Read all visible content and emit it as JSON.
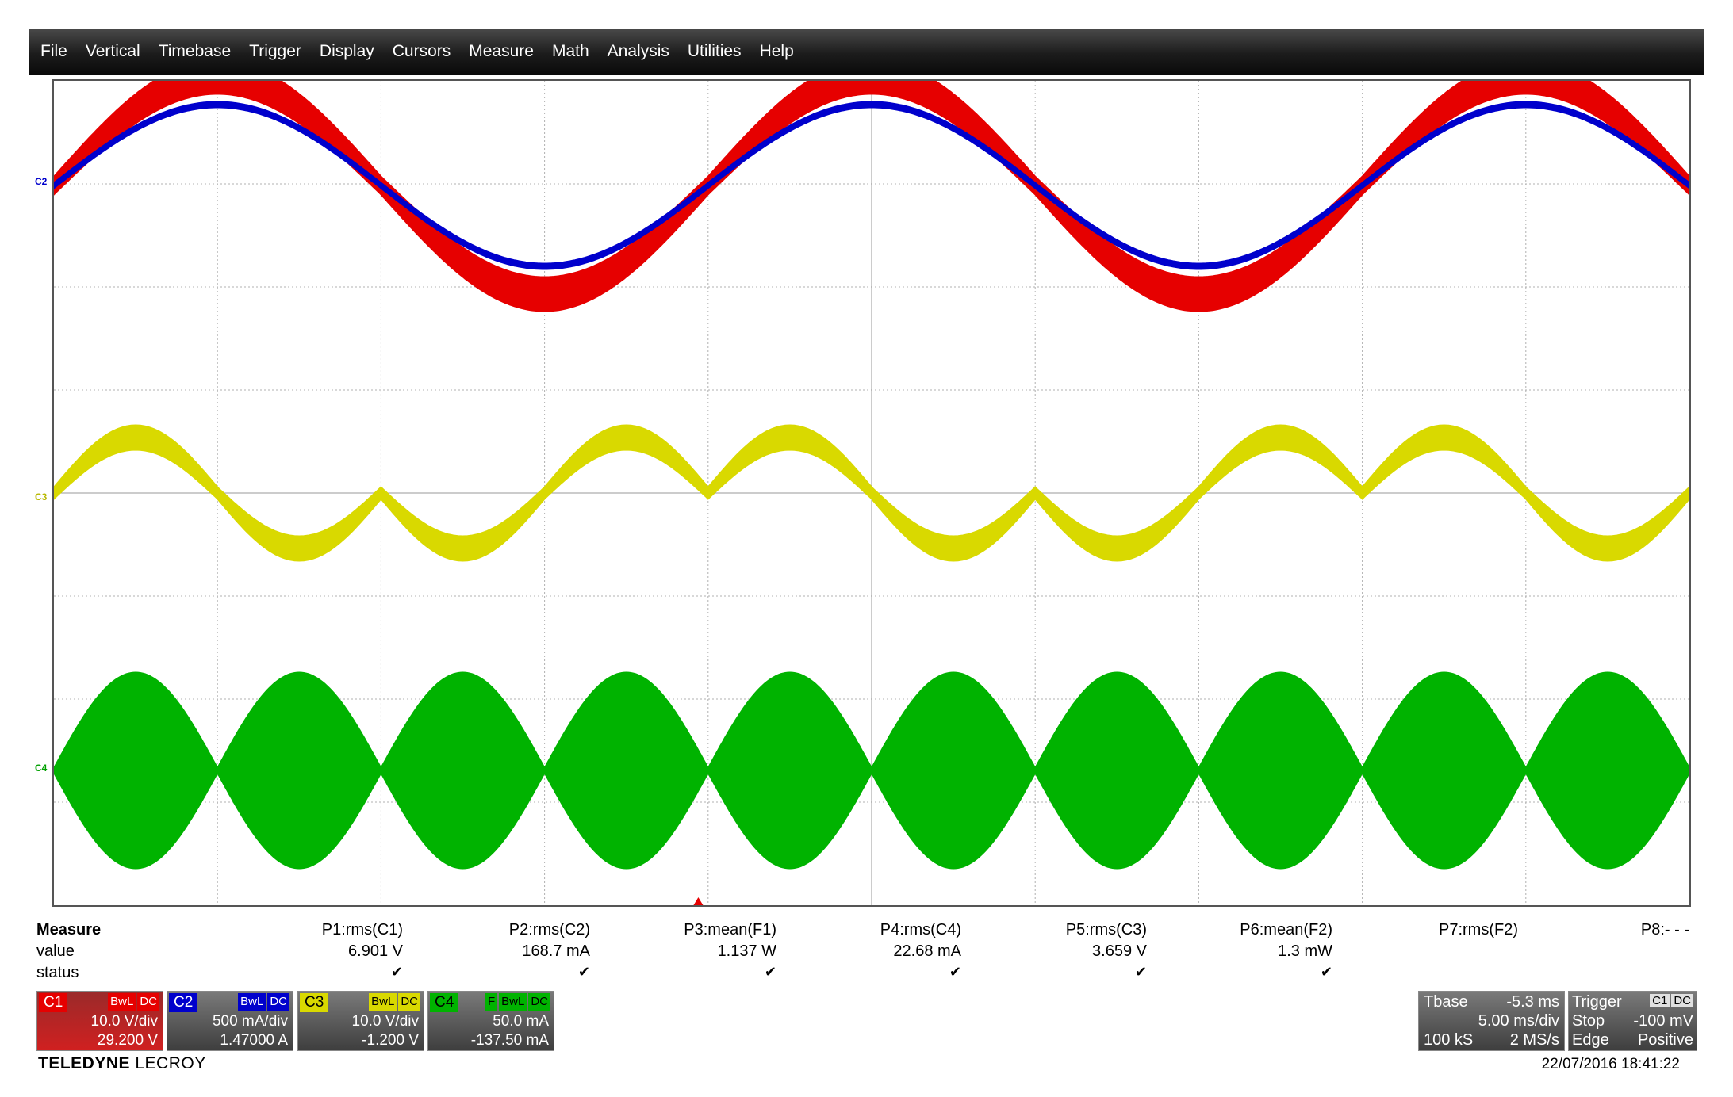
{
  "menu": [
    "File",
    "Vertical",
    "Timebase",
    "Trigger",
    "Display",
    "Cursors",
    "Measure",
    "Math",
    "Analysis",
    "Utilities",
    "Help"
  ],
  "colors": {
    "c1": "#e60000",
    "c2": "#0000cc",
    "c3": "#d9d900",
    "c4": "#00b300",
    "grid": "#b0b0b0"
  },
  "channel_markers": {
    "c1": "C1",
    "c2": "C2",
    "c3": "C3",
    "c4": "C4"
  },
  "measure": {
    "title": "Measure",
    "row_value": "value",
    "row_status": "status",
    "params": [
      {
        "name": "P1:rms(C1)",
        "value": "6.901 V",
        "status": "✔"
      },
      {
        "name": "P2:rms(C2)",
        "value": "168.7 mA",
        "status": "✔"
      },
      {
        "name": "P3:mean(F1)",
        "value": "1.137 W",
        "status": "✔"
      },
      {
        "name": "P4:rms(C4)",
        "value": "22.68 mA",
        "status": "✔"
      },
      {
        "name": "P5:rms(C3)",
        "value": "3.659 V",
        "status": "✔"
      },
      {
        "name": "P6:mean(F2)",
        "value": "1.3 mW",
        "status": "✔"
      },
      {
        "name": "P7:rms(F2)",
        "value": "",
        "status": ""
      },
      {
        "name": "P8:- - -",
        "value": "",
        "status": ""
      }
    ]
  },
  "channels": [
    {
      "tag": "C1",
      "flags": [
        "BwL",
        "DC"
      ],
      "scale": "10.0 V/div",
      "offset": "29.200 V"
    },
    {
      "tag": "C2",
      "flags": [
        "BwL",
        "DC"
      ],
      "scale": "500 mA/div",
      "offset": "1.47000 A"
    },
    {
      "tag": "C3",
      "flags": [
        "BwL",
        "DC"
      ],
      "scale": "10.0 V/div",
      "offset": "-1.200 V"
    },
    {
      "tag": "C4",
      "flags": [
        "F",
        "BwL",
        "DC"
      ],
      "scale": "50.0 mA",
      "offset": "-137.50 mA"
    }
  ],
  "brand": {
    "bold": "TELEDYNE",
    "light": " LECROY"
  },
  "timebase": {
    "label": "Tbase",
    "delay": "-5.3 ms",
    "scale": "5.00 ms/div",
    "samples": "100 kS",
    "rate": "2 MS/s"
  },
  "trigger": {
    "label": "Trigger",
    "flags": [
      "C1",
      "DC"
    ],
    "mode": "Stop",
    "level": "-100 mV",
    "type": "Edge",
    "slope": "Positive"
  },
  "datetime": "22/07/2016 18:41:22"
}
